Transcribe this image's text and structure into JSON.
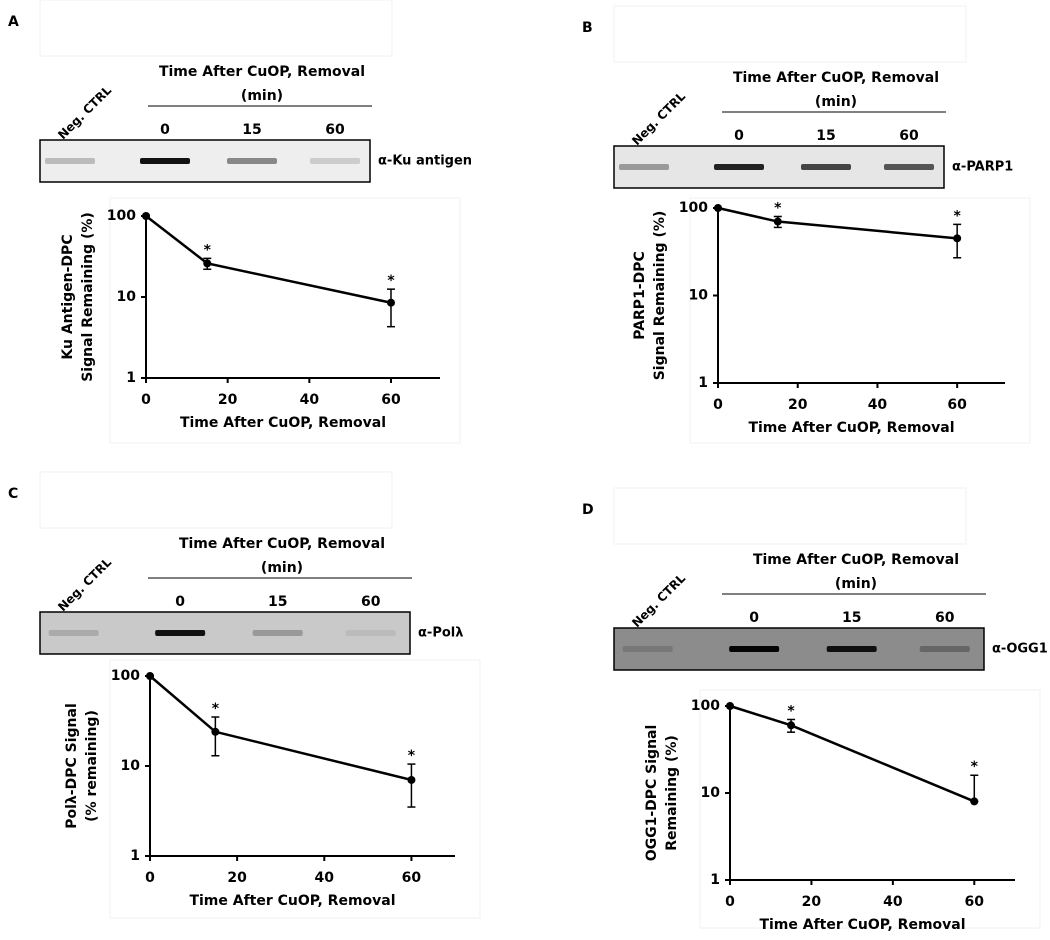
{
  "chart_data": [
    {
      "type": "line",
      "panel": "A",
      "blot": {
        "control": "Neg. CTRL",
        "header": "Time After CuOP, Removal",
        "unit": "(min)",
        "lanes": [
          "0",
          "15",
          "60"
        ],
        "antibody": "α-Ku antigen"
      },
      "xlabel": "Time After CuOP, Removal",
      "ylabel": [
        "Ku Antigen-DPC",
        "Signal Remaining (%)"
      ],
      "x": [
        0,
        15,
        60
      ],
      "series": [
        {
          "color": "#000000",
          "values": [
            100,
            26,
            8.5
          ],
          "error_minus": [
            0,
            4,
            4.2
          ],
          "error_plus": [
            0,
            4,
            4
          ],
          "significance": [
            null,
            "*",
            "*"
          ]
        }
      ],
      "xlim": [
        0,
        72
      ],
      "xticks": [
        0,
        20,
        40,
        60
      ],
      "ylim": [
        1,
        100
      ],
      "yticks": [
        1,
        10,
        100
      ],
      "log_y": true
    },
    {
      "type": "line",
      "panel": "B",
      "blot": {
        "control": "Neg. CTRL",
        "header": "Time After CuOP, Removal",
        "unit": "(min)",
        "lanes": [
          "0",
          "15",
          "60"
        ],
        "antibody": "α-PARP1"
      },
      "xlabel": "Time After CuOP, Removal",
      "ylabel": [
        "PARP1-DPC",
        "Signal Remaining (%)"
      ],
      "x": [
        0,
        15,
        60
      ],
      "series": [
        {
          "color": "#000000",
          "values": [
            100,
            70,
            45
          ],
          "error_minus": [
            0,
            10,
            18
          ],
          "error_plus": [
            0,
            10,
            20
          ],
          "significance": [
            null,
            "*",
            "*"
          ]
        }
      ],
      "xlim": [
        0,
        72
      ],
      "xticks": [
        0,
        20,
        40,
        60
      ],
      "ylim": [
        1,
        100
      ],
      "yticks": [
        1,
        10,
        100
      ],
      "log_y": true
    },
    {
      "type": "line",
      "panel": "C",
      "blot": {
        "control": "Neg. CTRL",
        "header": "Time After CuOP, Removal",
        "unit": "(min)",
        "lanes": [
          "0",
          "15",
          "60"
        ],
        "antibody": "α-Polλ"
      },
      "xlabel": "Time After CuOP, Removal",
      "ylabel": [
        "Polλ-DPC Signal",
        "(% remaining)"
      ],
      "x": [
        0,
        15,
        60
      ],
      "series": [
        {
          "color": "#000000",
          "values": [
            100,
            24,
            7
          ],
          "error_minus": [
            0,
            11,
            3.5
          ],
          "error_plus": [
            0,
            11,
            3.5
          ],
          "significance": [
            null,
            "*",
            "*"
          ]
        }
      ],
      "xlim": [
        0,
        70
      ],
      "xticks": [
        0,
        20,
        40,
        60
      ],
      "ylim": [
        1,
        100
      ],
      "yticks": [
        1,
        10,
        100
      ],
      "log_y": true
    },
    {
      "type": "line",
      "panel": "D",
      "blot": {
        "control": "Neg. CTRL",
        "header": "Time After CuOP, Removal",
        "unit": "(min)",
        "lanes": [
          "0",
          "15",
          "60"
        ],
        "antibody": "α-OGG1"
      },
      "xlabel": "Time After CuOP, Removal",
      "ylabel": [
        "OGG1-DPC Signal",
        "Remaining (%)"
      ],
      "x": [
        0,
        15,
        60
      ],
      "series": [
        {
          "color": "#000000",
          "values": [
            100,
            60,
            8
          ],
          "error_minus": [
            0,
            10,
            0
          ],
          "error_plus": [
            0,
            10,
            8
          ],
          "significance": [
            null,
            "*",
            "*"
          ]
        }
      ],
      "xlim": [
        0,
        70
      ],
      "xticks": [
        0,
        20,
        40,
        60
      ],
      "ylim": [
        1,
        100
      ],
      "yticks": [
        1,
        10,
        100
      ],
      "log_y": true
    }
  ]
}
